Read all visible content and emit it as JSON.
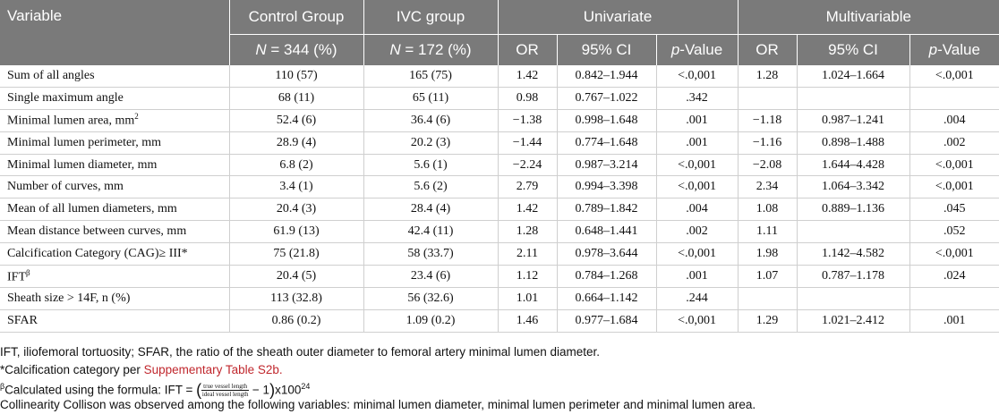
{
  "headers": {
    "variable": "Variable",
    "control_group": "Control Group",
    "ivc_group": "IVC group",
    "univariate": "Univariate",
    "multivariable": "Multivariable",
    "control_n_var": "N",
    "control_n_rest": " = 344 (%)",
    "ivc_n_var": "N",
    "ivc_n_rest": " = 172 (%)",
    "uni_or": "OR",
    "uni_ci": "95% CI",
    "uni_p_var": "p",
    "uni_p_rest": "-Value",
    "multi_or": "OR",
    "multi_ci": "95% CI",
    "multi_p_var": "p",
    "multi_p_rest": "-Value"
  },
  "rows": [
    {
      "variable": "Sum of all angles",
      "control": "110 (57)",
      "ivc": "165 (75)",
      "u_or": "1.42",
      "u_ci": "0.842–1.944",
      "u_p": "<.0,001",
      "m_or": "1.28",
      "m_ci": "1.024–1.664",
      "m_p": "<.0,001"
    },
    {
      "variable": "Single maximum angle",
      "control": "68 (11)",
      "ivc": "65 (11)",
      "u_or": "0.98",
      "u_ci": "0.767–1.022",
      "u_p": ".342",
      "m_or": "",
      "m_ci": "",
      "m_p": ""
    },
    {
      "variable": "Minimal lumen area, mm",
      "sup": "2",
      "control": "52.4 (6)",
      "ivc": "36.4 (6)",
      "u_or": "−1.38",
      "u_ci": "0.998–1.648",
      "u_p": ".001",
      "m_or": "−1.18",
      "m_ci": "0.987–1.241",
      "m_p": ".004"
    },
    {
      "variable": "Minimal lumen perimeter, mm",
      "control": "28.9 (4)",
      "ivc": "20.2 (3)",
      "u_or": "−1.44",
      "u_ci": "0.774–1.648",
      "u_p": ".001",
      "m_or": "−1.16",
      "m_ci": "0.898–1.488",
      "m_p": ".002"
    },
    {
      "variable": "Minimal lumen diameter, mm",
      "control": "6.8 (2)",
      "ivc": "5.6 (1)",
      "u_or": "−2.24",
      "u_ci": "0.987–3.214",
      "u_p": "<.0,001",
      "m_or": "−2.08",
      "m_ci": "1.644–4.428",
      "m_p": "<.0,001"
    },
    {
      "variable": "Number of curves, mm",
      "control": "3.4 (1)",
      "ivc": "5.6 (2)",
      "u_or": "2.79",
      "u_ci": "0.994–3.398",
      "u_p": "<.0,001",
      "m_or": "2.34",
      "m_ci": "1.064–3.342",
      "m_p": "<.0,001"
    },
    {
      "variable": "Mean of all lumen diameters, mm",
      "control": "20.4 (3)",
      "ivc": "28.4 (4)",
      "u_or": "1.42",
      "u_ci": "0.789–1.842",
      "u_p": ".004",
      "m_or": "1.08",
      "m_ci": "0.889–1.136",
      "m_p": ".045"
    },
    {
      "variable": "Mean distance between curves, mm",
      "control": "61.9 (13)",
      "ivc": "42.4 (11)",
      "u_or": "1.28",
      "u_ci": "0.648–1.441",
      "u_p": ".002",
      "m_or": "1.11",
      "m_ci": "",
      "m_p": ".052"
    },
    {
      "variable": "Calcification Category (CAG)≥ III*",
      "control": "75 (21.8)",
      "ivc": "58 (33.7)",
      "u_or": "2.11",
      "u_ci": "0.978–3.644",
      "u_p": "<.0,001",
      "m_or": "1.98",
      "m_ci": "1.142–4.582",
      "m_p": "<.0,001"
    },
    {
      "variable": "IFT",
      "sup": "β",
      "control": "20.4 (5)",
      "ivc": "23.4 (6)",
      "u_or": "1.12",
      "u_ci": "0.784–1.268",
      "u_p": ".001",
      "m_or": "1.07",
      "m_ci": "0.787–1.178",
      "m_p": ".024"
    },
    {
      "variable": "Sheath size > 14F, n (%)",
      "control": "113 (32.8)",
      "ivc": "56 (32.6)",
      "u_or": "1.01",
      "u_ci": "0.664–1.142",
      "u_p": ".244",
      "m_or": "",
      "m_ci": "",
      "m_p": ""
    },
    {
      "variable": "SFAR",
      "control": "0.86 (0.2)",
      "ivc": "1.09 (0.2)",
      "u_or": "1.46",
      "u_ci": "0.977–1.684",
      "u_p": "<.0,001",
      "m_or": "1.29",
      "m_ci": "1.021–2.412",
      "m_p": ".001"
    }
  ],
  "notes": {
    "abbrev": "IFT, iliofemoral tortuosity; SFAR, the ratio of the sheath outer diameter to femoral artery minimal lumen diameter.",
    "calc_prefix": "*Calcification category per ",
    "calc_link": "Suppementary Table S2b.",
    "formula_sup": "β",
    "formula_prefix": "Calculated using the formula: IFT = ",
    "formula_num": "true vessel length",
    "formula_den": "ideal vessel length",
    "formula_mid": " − 1",
    "formula_suffix": "x100",
    "formula_exp": "24",
    "collinearity": "Collinearity Collison was observed among the following variables: minimal lumen diameter, minimal lumen perimeter and minimal lumen area."
  }
}
